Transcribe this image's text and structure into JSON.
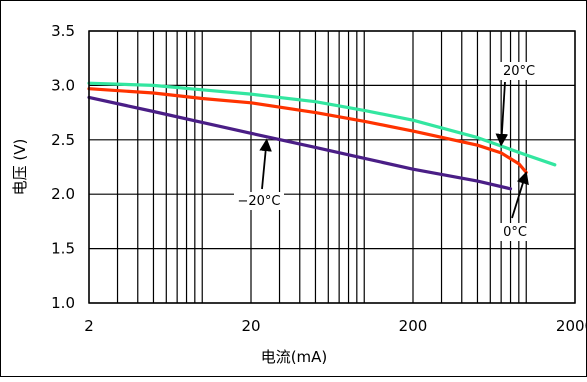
{
  "chart_data": {
    "type": "line",
    "xscale": "log",
    "xlabel": "电流(mA)",
    "ylabel": "电压 (V)",
    "xlim": [
      2,
      2000
    ],
    "ylim": [
      1.0,
      3.5
    ],
    "xticks": [
      2,
      20,
      200,
      2000
    ],
    "xtick_labels": [
      "2",
      "20",
      "200",
      "2000"
    ],
    "yticks": [
      1.0,
      1.5,
      2.0,
      2.5,
      3.0,
      3.5
    ],
    "ytick_labels": [
      "1.0",
      "1.5",
      "2.0",
      "2.5",
      "3.0",
      "3.5"
    ],
    "grid": true,
    "series": [
      {
        "name": "20°C",
        "color": "#33e6a0",
        "x": [
          2,
          5,
          10,
          20,
          50,
          100,
          200,
          500,
          1000,
          1500
        ],
        "y": [
          3.02,
          3.0,
          2.96,
          2.92,
          2.85,
          2.77,
          2.68,
          2.52,
          2.36,
          2.27
        ]
      },
      {
        "name": "0°C",
        "color": "#ff3300",
        "x": [
          2,
          5,
          10,
          20,
          50,
          100,
          200,
          500,
          700,
          900,
          1000
        ],
        "y": [
          2.97,
          2.93,
          2.88,
          2.84,
          2.75,
          2.67,
          2.58,
          2.45,
          2.38,
          2.28,
          2.2
        ]
      },
      {
        "name": "-20°C",
        "color": "#4a1e86",
        "x": [
          2,
          5,
          10,
          20,
          50,
          100,
          200,
          500,
          800
        ],
        "y": [
          2.89,
          2.76,
          2.66,
          2.56,
          2.43,
          2.33,
          2.23,
          2.12,
          2.05
        ]
      }
    ],
    "annotations": [
      {
        "text": "20°C",
        "series": "20°C",
        "x": 700,
        "y": 2.45
      },
      {
        "text": "0°C",
        "series": "0°C",
        "x": 1000,
        "y": 2.2
      },
      {
        "text": "−20°C",
        "series": "-20°C",
        "x": 25,
        "y": 2.5
      }
    ]
  }
}
